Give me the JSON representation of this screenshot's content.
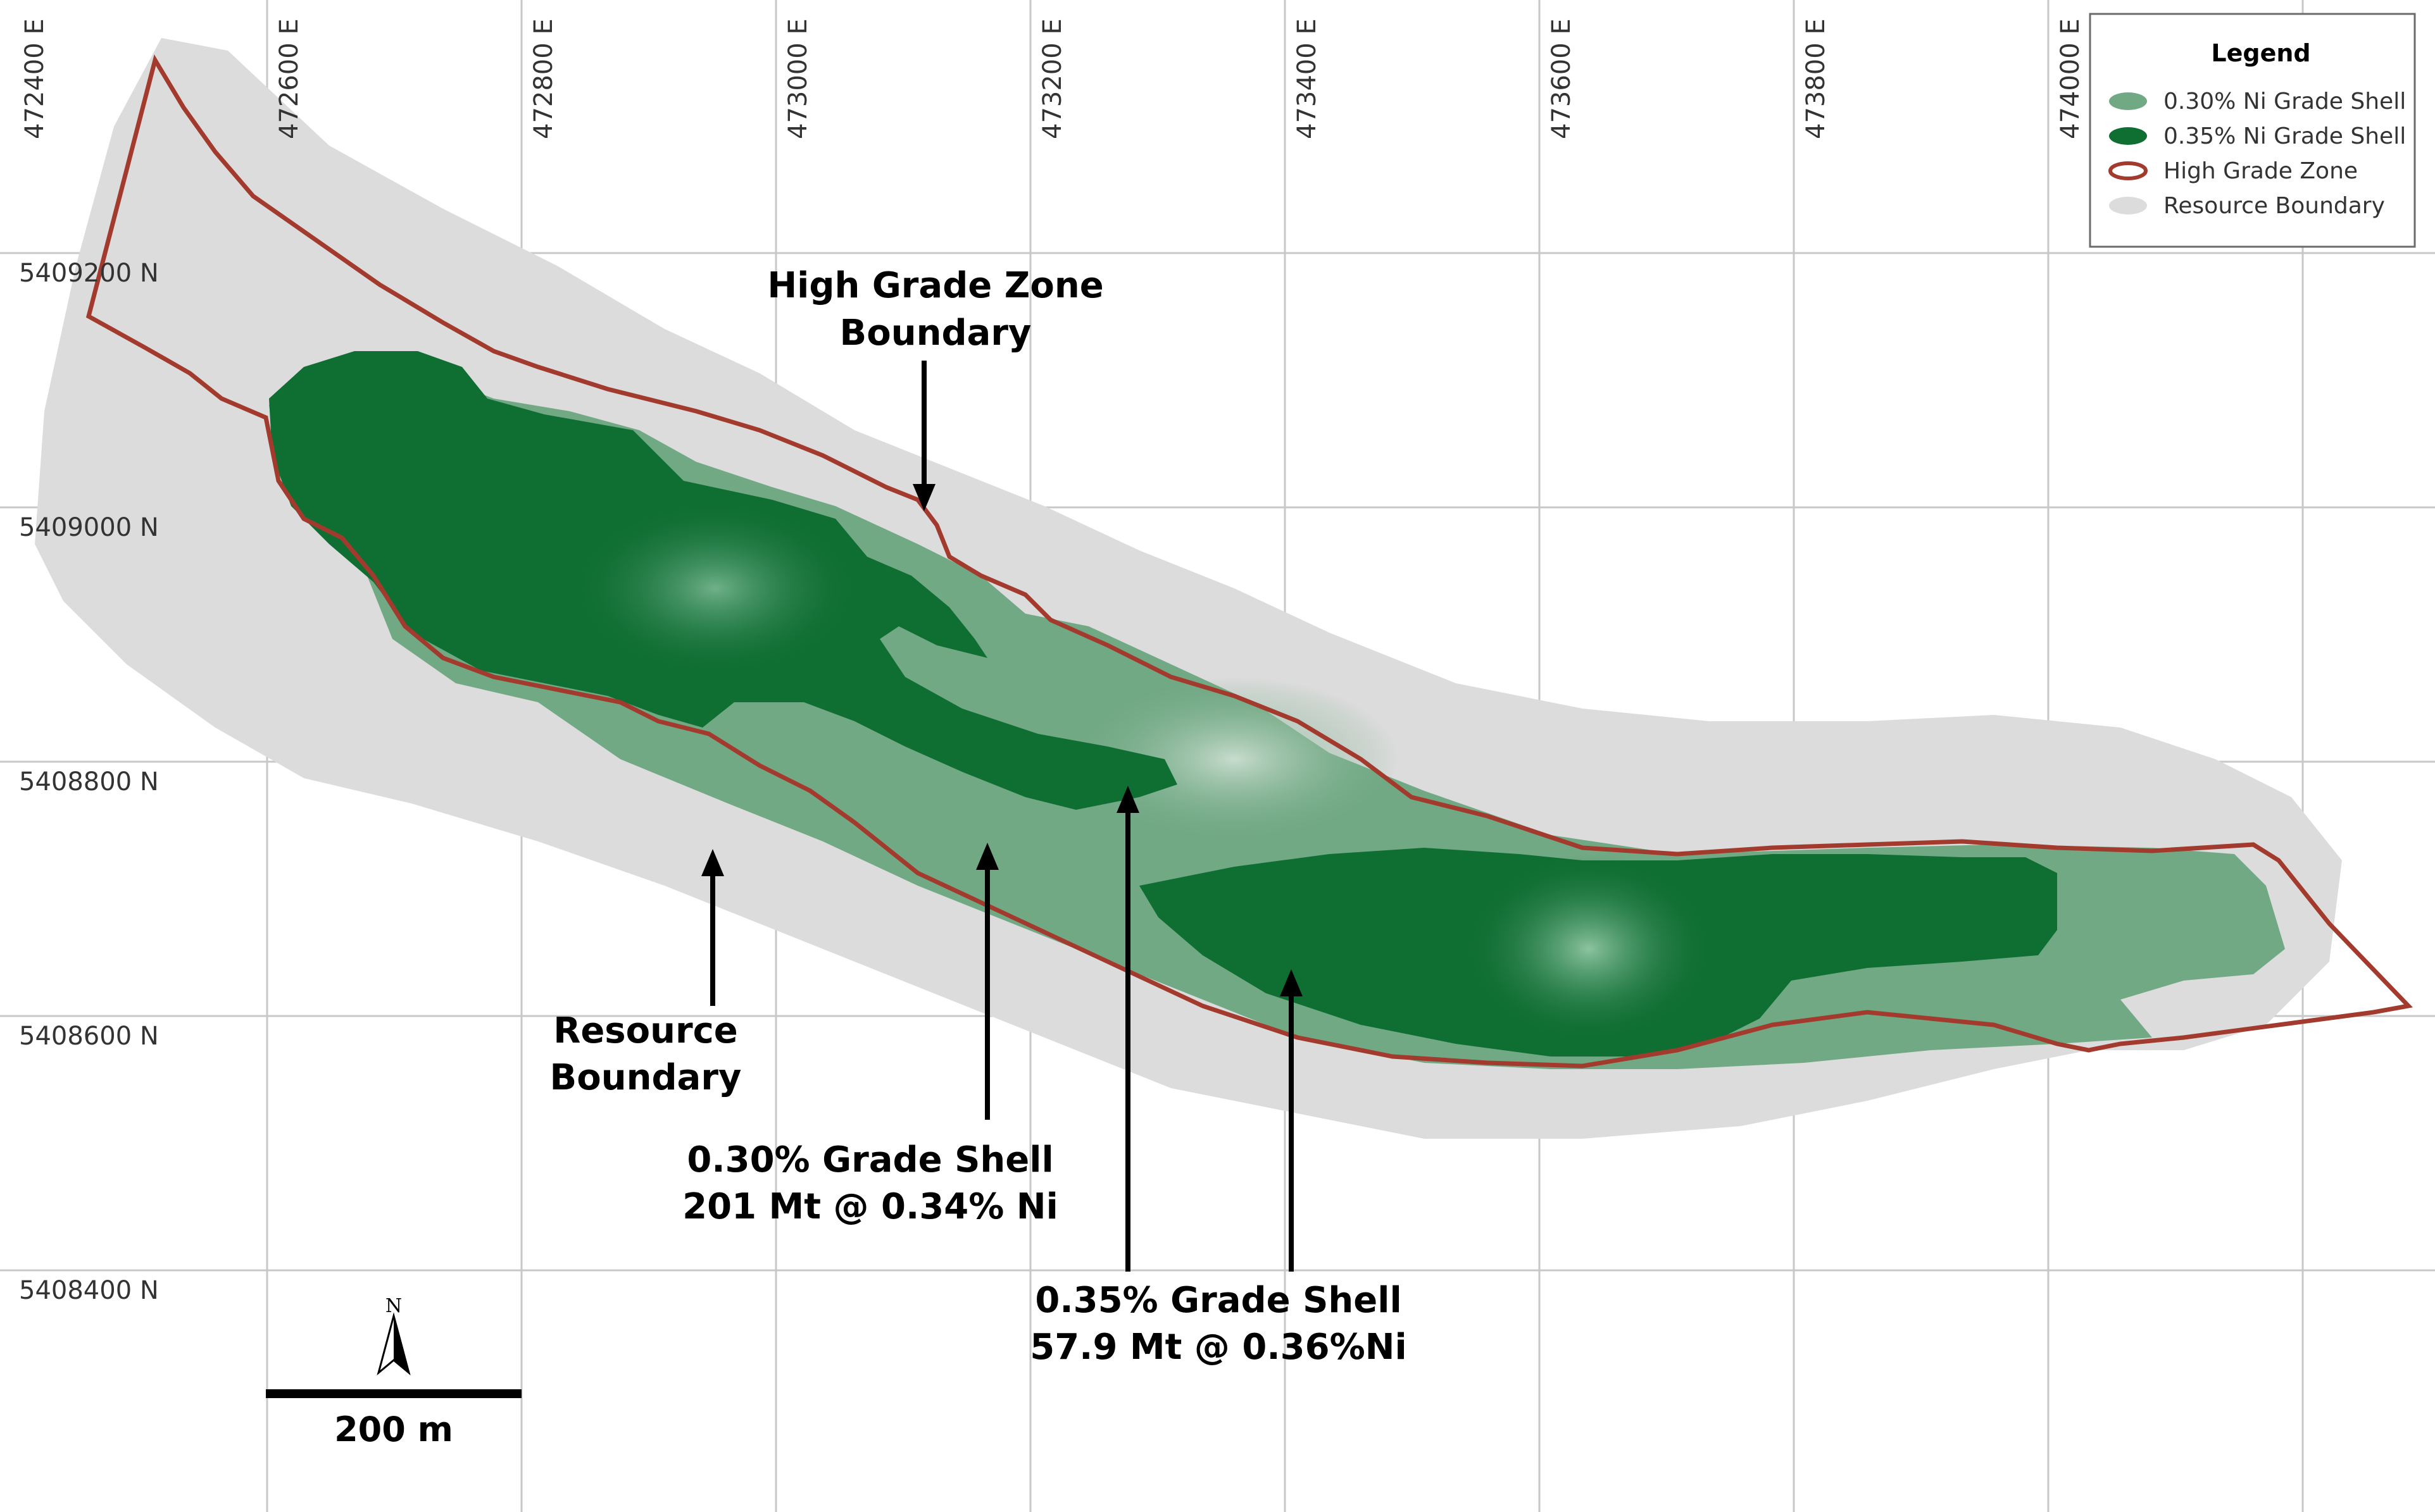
{
  "colors": {
    "resource_boundary": "#dcdcdc",
    "shell_030": "#72a985",
    "shell_035": "#0f6e32",
    "high_grade_zone": "#a33a2e",
    "grid": "#c8c8c8"
  },
  "grid": {
    "eastings": [
      "472400 E",
      "472600 E",
      "472800 E",
      "473000 E",
      "473200 E",
      "473400 E",
      "473600 E",
      "473800 E",
      "474000 E"
    ],
    "northings": [
      "5409200 N",
      "5409000 N",
      "5408800 N",
      "5408600 N",
      "5408400 N"
    ]
  },
  "legend": {
    "title": "Legend",
    "items": [
      {
        "label": "0.30% Ni Grade Shell",
        "symbol": "fill",
        "color": "#72a985"
      },
      {
        "label": "0.35% Ni Grade Shell",
        "symbol": "fill",
        "color": "#0f6e32"
      },
      {
        "label": "High Grade Zone",
        "symbol": "outline",
        "color": "#a33a2e"
      },
      {
        "label": "Resource Boundary",
        "symbol": "fill",
        "color": "#dcdcdc"
      }
    ]
  },
  "callouts": {
    "high_grade": {
      "line1": "High Grade Zone",
      "line2": "Boundary"
    },
    "resource": {
      "line1": "Resource",
      "line2": "Boundary"
    },
    "shell_030": {
      "line1": "0.30% Grade Shell",
      "line2": "201 Mt @ 0.34% Ni"
    },
    "shell_035": {
      "line1": "0.35% Grade Shell",
      "line2": "57.9 Mt @ 0.36%Ni"
    }
  },
  "scale_bar": {
    "label": "200 m"
  },
  "north_arrow": {
    "label": "N"
  }
}
